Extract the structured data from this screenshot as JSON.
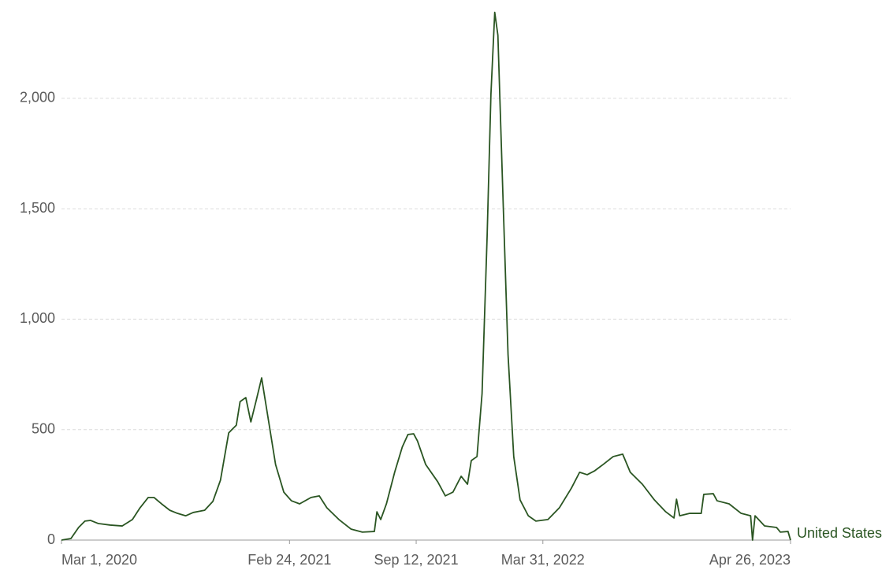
{
  "chart_data": {
    "type": "line",
    "x": [
      "2020-03-01",
      "2020-03-16",
      "2020-03-28",
      "2020-04-07",
      "2020-04-16",
      "2020-04-28",
      "2020-05-17",
      "2020-06-05",
      "2020-06-21",
      "2020-07-03",
      "2020-07-16",
      "2020-07-25",
      "2020-08-06",
      "2020-08-19",
      "2020-08-31",
      "2020-09-13",
      "2020-09-25",
      "2020-10-13",
      "2020-10-26",
      "2020-11-07",
      "2020-11-20",
      "2020-11-26",
      "2020-12-02",
      "2020-12-08",
      "2020-12-17",
      "2020-12-25",
      "2021-01-02",
      "2021-01-11",
      "2021-01-21",
      "2021-02-02",
      "2021-02-15",
      "2021-02-27",
      "2021-03-12",
      "2021-03-30",
      "2021-04-12",
      "2021-04-24",
      "2021-05-13",
      "2021-06-01",
      "2021-06-19",
      "2021-07-08",
      "2021-07-12",
      "2021-07-18",
      "2021-07-27",
      "2021-08-09",
      "2021-08-21",
      "2021-08-30",
      "2021-09-08",
      "2021-09-14",
      "2021-09-27",
      "2021-10-16",
      "2021-10-28",
      "2021-11-09",
      "2021-11-22",
      "2021-12-02",
      "2021-12-08",
      "2021-12-17",
      "2021-12-25",
      "2022-01-02",
      "2022-01-08",
      "2022-01-14",
      "2022-01-19",
      "2022-01-27",
      "2022-02-04",
      "2022-02-13",
      "2022-02-23",
      "2022-03-08",
      "2022-03-20",
      "2022-04-08",
      "2022-04-26",
      "2022-05-15",
      "2022-05-28",
      "2022-06-09",
      "2022-06-21",
      "2022-07-04",
      "2022-07-20",
      "2022-08-04",
      "2022-08-16",
      "2022-09-04",
      "2022-09-23",
      "2022-10-11",
      "2022-10-24",
      "2022-10-28",
      "2022-11-02",
      "2022-11-18",
      "2022-12-06",
      "2022-12-10",
      "2022-12-25",
      "2022-12-31",
      "2023-01-19",
      "2023-02-07",
      "2023-02-22",
      "2023-02-25",
      "2023-03-01",
      "2023-03-16",
      "2023-04-04",
      "2023-04-10",
      "2023-04-22",
      "2023-04-26"
    ],
    "series": [
      {
        "name": "United States",
        "color": "#2a5522",
        "values": [
          0,
          7,
          57,
          86,
          89,
          75,
          68,
          64,
          93,
          146,
          193,
          193,
          164,
          135,
          121,
          110,
          125,
          135,
          175,
          271,
          485,
          503,
          520,
          627,
          645,
          535,
          627,
          734,
          556,
          342,
          217,
          178,
          164,
          193,
          200,
          146,
          93,
          50,
          36,
          39,
          128,
          93,
          164,
          307,
          421,
          478,
          481,
          449,
          342,
          264,
          200,
          217,
          289,
          253,
          360,
          378,
          663,
          1376,
          2018,
          2389,
          2285,
          1554,
          841,
          378,
          182,
          110,
          86,
          93,
          146,
          235,
          307,
          296,
          314,
          342,
          378,
          389,
          307,
          253,
          182,
          128,
          100,
          185,
          110,
          121,
          121,
          207,
          210,
          178,
          164,
          121,
          110,
          0,
          110,
          64,
          57,
          36,
          39,
          0
        ]
      }
    ],
    "xlim": [
      "2020-03-01",
      "2023-04-26"
    ],
    "xticks": [
      {
        "value": "2020-03-01",
        "label": "Mar 1, 2020"
      },
      {
        "value": "2021-02-24",
        "label": "Feb 24, 2021"
      },
      {
        "value": "2021-09-12",
        "label": "Sep 12, 2021"
      },
      {
        "value": "2022-03-31",
        "label": "Mar 31, 2022"
      },
      {
        "value": "2023-04-26",
        "label": "Apr 26, 2023"
      }
    ],
    "ylim": [
      0,
      2420
    ],
    "yticks": [
      0,
      500,
      {
        "value": 1000,
        "label": "1,000"
      },
      {
        "value": 1500,
        "label": "1,500"
      },
      {
        "value": 2000,
        "label": "2,000"
      }
    ],
    "grid": true
  }
}
